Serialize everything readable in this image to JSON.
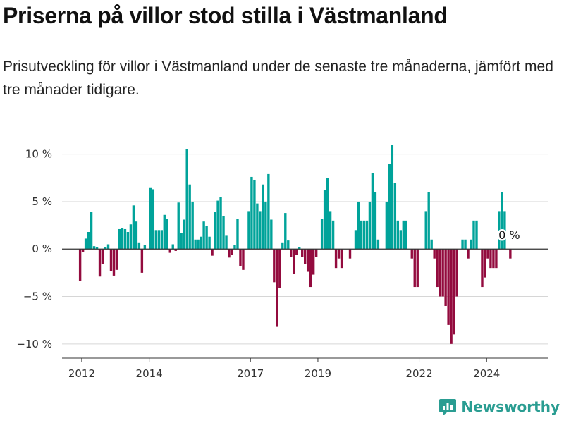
{
  "header": {
    "title": "Priserna på villor stod stilla i Västmanland",
    "subtitle": "Prisutveckling för villor i Västmanland under de senaste tre månaderna, jämfört med tre månader tidigare."
  },
  "branding": {
    "name": "Newsworthy",
    "icon": "bar-chart-logo-icon",
    "color": "#2a9d92"
  },
  "chart_data": {
    "type": "bar",
    "title": "",
    "xlabel": "",
    "ylabel": "",
    "ylim": [
      -11.5,
      12.5
    ],
    "xlim": [
      "2011-06",
      "2025-11"
    ],
    "grid": true,
    "legend": "none",
    "colors": {
      "positive": "#00a39a",
      "negative": "#930b3e"
    },
    "y_ticks": [
      {
        "value": 10,
        "label": "10 %"
      },
      {
        "value": 5,
        "label": "5 %"
      },
      {
        "value": 0,
        "label": "0 %"
      },
      {
        "value": -5,
        "label": "−5 %"
      },
      {
        "value": -10,
        "label": "−10 %"
      }
    ],
    "x_ticks": [
      {
        "date": "2012-01",
        "label": "2012"
      },
      {
        "date": "2014-01",
        "label": "2014"
      },
      {
        "date": "2017-01",
        "label": "2017"
      },
      {
        "date": "2019-01",
        "label": "2019"
      },
      {
        "date": "2022-01",
        "label": "2022"
      },
      {
        "date": "2024-01",
        "label": "2024"
      }
    ],
    "end_label": "0 %",
    "series": [
      {
        "start": "2011-12",
        "values": [
          -3.4,
          -0.3,
          1.1,
          1.8,
          3.9,
          0.3,
          0.2,
          -2.9,
          -1.6,
          0.2,
          0.5,
          -2.3,
          -2.8,
          -2.2,
          2.1,
          2.2,
          2.1,
          1.8,
          2.6,
          4.6,
          2.9,
          0.7,
          -2.5,
          0.4,
          0.0,
          6.5,
          6.3,
          2.0,
          2.0,
          2.0,
          3.6,
          3.2,
          -0.4,
          0.5,
          -0.2,
          4.9,
          1.7,
          3.1,
          10.5,
          6.8,
          5.0,
          1.0,
          1.0,
          1.3,
          2.9,
          2.4,
          1.3,
          -0.7,
          3.9,
          5.1,
          5.5,
          3.5,
          1.4,
          -0.9,
          -0.6,
          0.4,
          3.2,
          -1.8,
          -2.2,
          0.0,
          4.0,
          7.6,
          7.3,
          4.8,
          4.0,
          6.8,
          5.0,
          7.9,
          3.1,
          -3.5,
          -8.2,
          -4.1,
          0.7,
          3.8,
          0.9,
          -0.8,
          -2.6,
          -0.6,
          0.2,
          -0.8,
          -1.6,
          -2.4,
          -4.0,
          -2.7,
          -0.8,
          0.0,
          3.2,
          6.2,
          7.5,
          4.0,
          3.0,
          -2.0,
          -1.0,
          -2.0,
          0.0,
          0.0,
          -1.0,
          0.0,
          2.0,
          5.0,
          3.0,
          3.0,
          3.0,
          5.0,
          8.0,
          6.0,
          1.0,
          0.0,
          0.0,
          5.0,
          9.0,
          11.0,
          7.0,
          3.0,
          2.0,
          3.0,
          3.0,
          0.0,
          -1.0,
          -4.0,
          -4.0,
          0.0,
          0.0,
          4.0,
          6.0,
          1.0,
          -1.0,
          -4.0,
          -5.0,
          -5.0,
          -6.0,
          -8.0,
          -10.0,
          -9.0,
          -5.0,
          0.0,
          1.0,
          1.0,
          -1.0,
          1.0,
          3.0,
          3.0,
          0.0,
          -4.0,
          -3.0,
          -1.0,
          -2.0,
          -2.0,
          -2.0,
          4.0,
          6.0,
          4.0,
          0.0,
          -1.0
        ]
      }
    ]
  }
}
